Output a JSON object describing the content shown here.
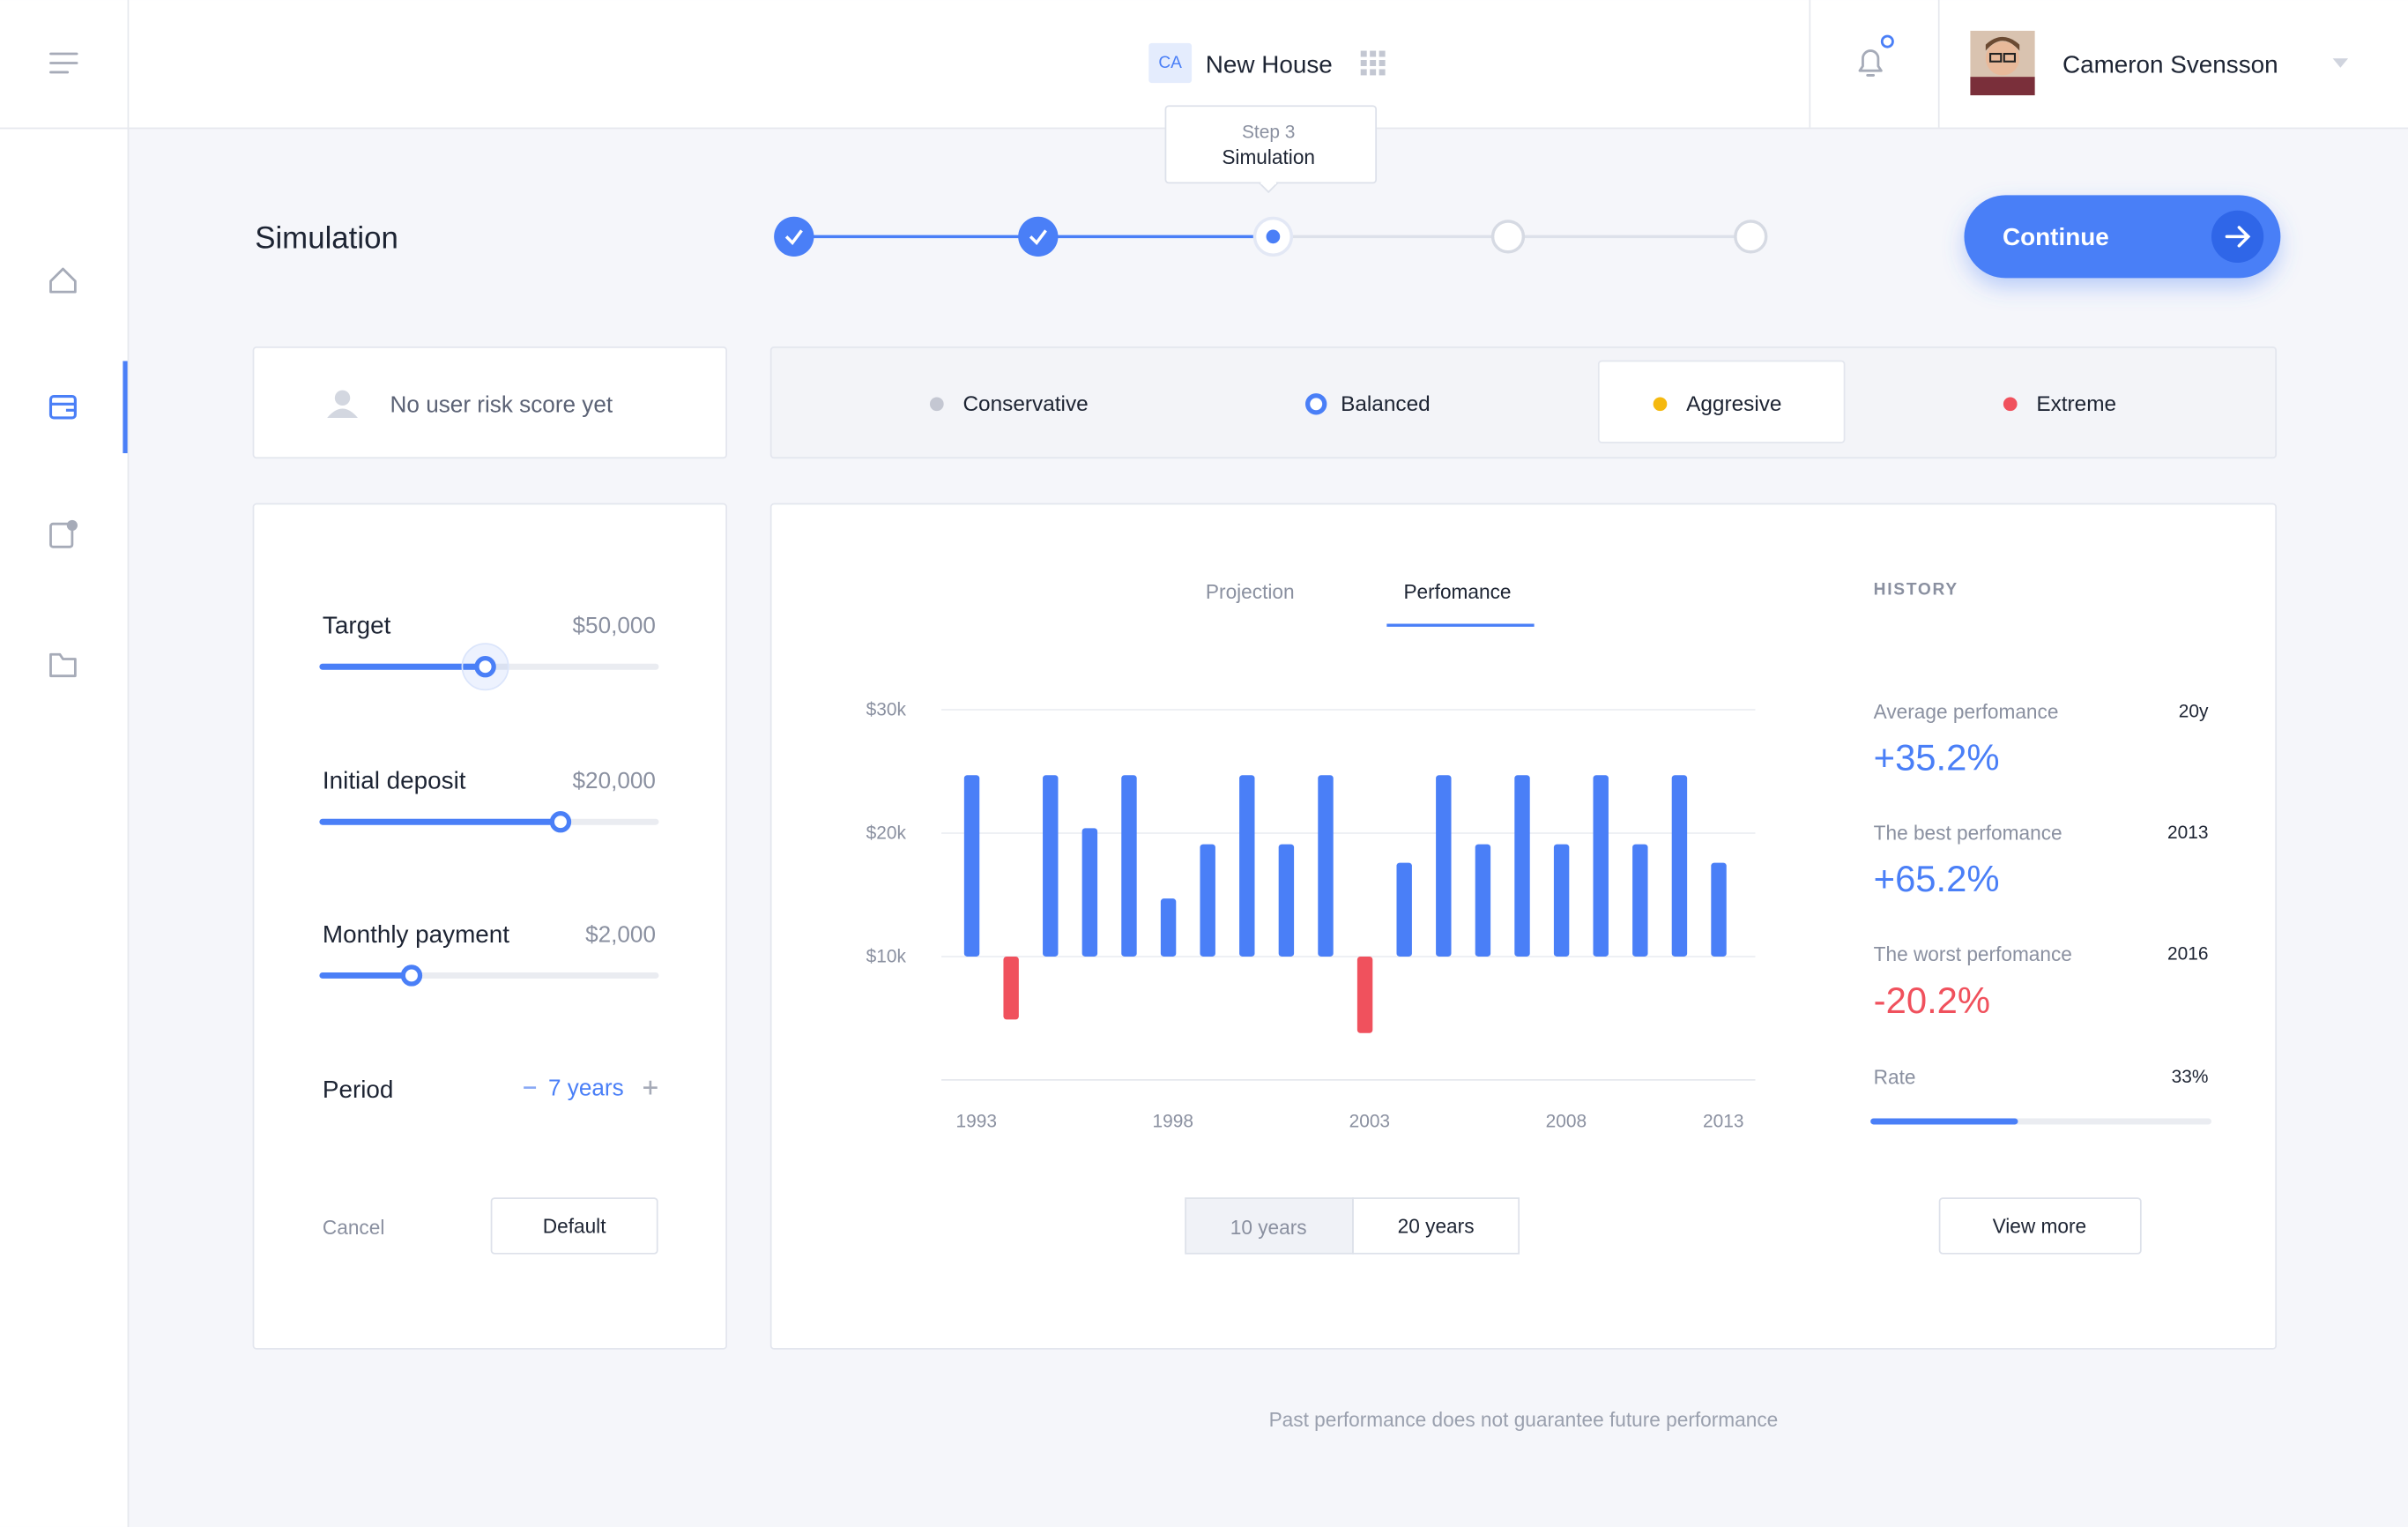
{
  "header": {
    "project_badge": "CA",
    "project": "New House",
    "user": "Cameron Svensson",
    "step_tooltip": {
      "step": "Step 3",
      "name": "Simulation"
    }
  },
  "page_title": "Simulation",
  "continue_button": "Continue",
  "risk_score": "No user risk score yet",
  "risk_profiles": [
    "Conservative",
    "Balanced",
    "Aggresive",
    "Extreme"
  ],
  "sliders": [
    {
      "label": "Target",
      "value": "$50,000"
    },
    {
      "label": "Initial deposit",
      "value": "$20,000"
    },
    {
      "label": "Monthly payment",
      "value": "$2,000"
    }
  ],
  "period": {
    "label": "Period",
    "value": "7 years"
  },
  "actions": {
    "cancel": "Cancel",
    "default": "Default"
  },
  "tabs": [
    "Projection",
    "Perfomance"
  ],
  "range_buttons": [
    "10 years",
    "20 years"
  ],
  "history": {
    "title": "HISTORY",
    "items": [
      {
        "label": "Average perfomance",
        "period": "20y",
        "value": "+35.2%"
      },
      {
        "label": "The best perfomance",
        "period": "2013",
        "value": "+65.2%"
      },
      {
        "label": "The worst perfomance",
        "period": "2016",
        "value": "-20.2%"
      }
    ],
    "rate_label": "Rate",
    "rate": "33%",
    "view_more": "View more"
  },
  "disclaimer": "Past performance does not guarantee future performance",
  "chart_data": {
    "type": "bar",
    "categories": [
      "1993",
      null,
      null,
      null,
      null,
      "1998",
      null,
      null,
      null,
      null,
      "2003",
      null,
      null,
      null,
      null,
      "2008",
      null,
      null,
      null,
      "2013"
    ],
    "values": [
      24700,
      4900,
      24700,
      20400,
      24700,
      14700,
      19100,
      24700,
      19100,
      24700,
      3800,
      17600,
      24700,
      19100,
      24700,
      19100,
      24700,
      19100,
      24700,
      17600
    ],
    "baseline": 10000,
    "color": "#4a7ff7",
    "negative_color": "#f0515d",
    "ylim": [
      0,
      30000
    ],
    "yticks": [
      {
        "value": 10000,
        "label": "$10k"
      },
      {
        "value": 20000,
        "label": "$20k"
      },
      {
        "value": 30000,
        "label": "$30k"
      }
    ],
    "grid": true
  }
}
